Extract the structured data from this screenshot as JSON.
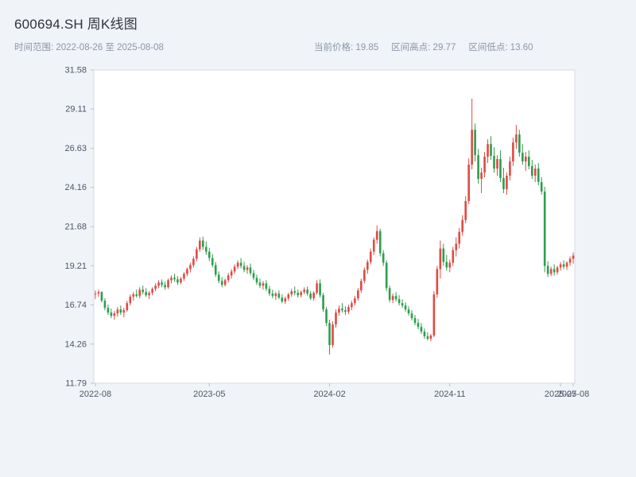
{
  "header": {
    "title": "600694.SH 周K线图",
    "time_range_label": "时间范围: 2022-08-26 至 2025-08-08",
    "current_price_label": "当前价格: 19.85",
    "range_high_label": "区间高点: 29.77",
    "range_low_label": "区间低点: 13.60"
  },
  "chart_data": {
    "type": "candlestick",
    "title": "600694.SH 周K线图",
    "symbol": "600694.SH",
    "interval": "weekly",
    "time_range": {
      "start": "2022-08-26",
      "end": "2025-08-08"
    },
    "current_price": 19.85,
    "range_high": 29.77,
    "range_low": 13.6,
    "up_color": "#df4b44",
    "down_color": "#2e9e4e",
    "grid": false,
    "legend": false,
    "ylim": [
      11.79,
      31.58
    ],
    "y_ticks": [
      11.79,
      14.26,
      16.74,
      19.21,
      21.68,
      24.16,
      26.63,
      29.11,
      31.58
    ],
    "x_ticks": [
      {
        "index": 0,
        "label": "2022-08"
      },
      {
        "index": 36,
        "label": "2023-05"
      },
      {
        "index": 74,
        "label": "2024-02"
      },
      {
        "index": 112,
        "label": "2024-11"
      },
      {
        "index": 147,
        "label": "2025-07"
      },
      {
        "index": 151,
        "label": "2025-08"
      }
    ],
    "columns": [
      "date",
      "open",
      "high",
      "low",
      "close"
    ],
    "candles": [
      [
        "2022-08-26",
        17.4,
        17.65,
        17.1,
        17.45
      ],
      [
        "2022-09-02",
        17.45,
        17.7,
        17.25,
        17.55
      ],
      [
        "2022-09-09",
        17.55,
        17.6,
        16.9,
        17.0
      ],
      [
        "2022-09-16",
        17.0,
        17.15,
        16.4,
        16.55
      ],
      [
        "2022-09-23",
        16.55,
        16.75,
        16.1,
        16.25
      ],
      [
        "2022-09-30",
        16.25,
        16.5,
        15.9,
        16.05
      ],
      [
        "2022-10-07",
        16.05,
        16.35,
        15.8,
        16.2
      ],
      [
        "2022-10-14",
        16.2,
        16.6,
        16.0,
        16.45
      ],
      [
        "2022-10-21",
        16.45,
        16.7,
        16.1,
        16.25
      ],
      [
        "2022-10-28",
        16.25,
        16.55,
        15.95,
        16.4
      ],
      [
        "2022-11-04",
        16.4,
        17.0,
        16.3,
        16.85
      ],
      [
        "2022-11-11",
        16.85,
        17.4,
        16.7,
        17.25
      ],
      [
        "2022-11-18",
        17.25,
        17.55,
        17.0,
        17.4
      ],
      [
        "2022-11-25",
        17.4,
        17.7,
        17.2,
        17.3
      ],
      [
        "2022-12-02",
        17.3,
        17.85,
        17.15,
        17.7
      ],
      [
        "2022-12-09",
        17.7,
        17.95,
        17.4,
        17.55
      ],
      [
        "2022-12-16",
        17.55,
        17.8,
        17.25,
        17.35
      ],
      [
        "2022-12-23",
        17.35,
        17.6,
        17.1,
        17.5
      ],
      [
        "2022-12-30",
        17.5,
        17.85,
        17.35,
        17.75
      ],
      [
        "2023-01-06",
        17.75,
        18.1,
        17.6,
        17.95
      ],
      [
        "2023-01-13",
        17.95,
        18.3,
        17.8,
        18.15
      ],
      [
        "2023-01-20",
        18.15,
        18.35,
        17.85,
        18.0
      ],
      [
        "2023-01-27",
        18.0,
        18.2,
        17.7,
        17.85
      ],
      [
        "2023-02-03",
        17.85,
        18.4,
        17.75,
        18.3
      ],
      [
        "2023-02-10",
        18.3,
        18.6,
        18.1,
        18.45
      ],
      [
        "2023-02-17",
        18.45,
        18.7,
        18.2,
        18.35
      ],
      [
        "2023-02-24",
        18.35,
        18.55,
        18.0,
        18.15
      ],
      [
        "2023-03-03",
        18.15,
        18.5,
        18.05,
        18.4
      ],
      [
        "2023-03-10",
        18.4,
        18.8,
        18.25,
        18.7
      ],
      [
        "2023-03-17",
        18.7,
        19.1,
        18.55,
        19.0
      ],
      [
        "2023-03-24",
        19.0,
        19.4,
        18.8,
        19.25
      ],
      [
        "2023-03-31",
        19.25,
        19.8,
        19.1,
        19.65
      ],
      [
        "2023-04-07",
        19.65,
        20.4,
        19.5,
        20.25
      ],
      [
        "2023-04-14",
        20.25,
        21.0,
        20.1,
        20.8
      ],
      [
        "2023-04-21",
        20.8,
        21.05,
        20.2,
        20.4
      ],
      [
        "2023-04-28",
        20.4,
        20.75,
        19.9,
        20.1
      ],
      [
        "2023-05-05",
        20.1,
        20.35,
        19.5,
        19.7
      ],
      [
        "2023-05-12",
        19.7,
        19.95,
        19.1,
        19.25
      ],
      [
        "2023-05-19",
        19.25,
        19.45,
        18.5,
        18.65
      ],
      [
        "2023-05-26",
        18.65,
        18.85,
        18.1,
        18.25
      ],
      [
        "2023-06-02",
        18.25,
        18.5,
        17.85,
        18.0
      ],
      [
        "2023-06-09",
        18.0,
        18.4,
        17.9,
        18.3
      ],
      [
        "2023-06-16",
        18.3,
        18.75,
        18.15,
        18.6
      ],
      [
        "2023-06-23",
        18.6,
        19.0,
        18.4,
        18.85
      ],
      [
        "2023-06-30",
        18.85,
        19.3,
        18.7,
        19.15
      ],
      [
        "2023-07-07",
        19.15,
        19.55,
        19.0,
        19.4
      ],
      [
        "2023-07-14",
        19.4,
        19.7,
        19.05,
        19.2
      ],
      [
        "2023-07-21",
        19.2,
        19.45,
        18.8,
        18.95
      ],
      [
        "2023-07-28",
        18.95,
        19.25,
        18.7,
        19.1
      ],
      [
        "2023-08-04",
        19.1,
        19.35,
        18.6,
        18.75
      ],
      [
        "2023-08-11",
        18.75,
        18.95,
        18.3,
        18.45
      ],
      [
        "2023-08-18",
        18.45,
        18.65,
        18.0,
        18.15
      ],
      [
        "2023-08-25",
        18.15,
        18.4,
        17.8,
        17.95
      ],
      [
        "2023-09-01",
        17.95,
        18.25,
        17.7,
        18.1
      ],
      [
        "2023-09-08",
        18.1,
        18.3,
        17.6,
        17.75
      ],
      [
        "2023-09-15",
        17.75,
        17.95,
        17.3,
        17.45
      ],
      [
        "2023-09-22",
        17.45,
        17.7,
        17.15,
        17.3
      ],
      [
        "2023-09-28",
        17.3,
        17.55,
        17.05,
        17.45
      ],
      [
        "2023-10-13",
        17.45,
        17.65,
        17.1,
        17.2
      ],
      [
        "2023-10-20",
        17.2,
        17.4,
        16.85,
        16.95
      ],
      [
        "2023-10-27",
        16.95,
        17.25,
        16.8,
        17.15
      ],
      [
        "2023-11-03",
        17.15,
        17.5,
        17.0,
        17.4
      ],
      [
        "2023-11-10",
        17.4,
        17.75,
        17.25,
        17.6
      ],
      [
        "2023-11-17",
        17.6,
        17.9,
        17.35,
        17.5
      ],
      [
        "2023-11-24",
        17.5,
        17.7,
        17.2,
        17.35
      ],
      [
        "2023-12-01",
        17.35,
        17.65,
        17.2,
        17.55
      ],
      [
        "2023-12-08",
        17.55,
        17.85,
        17.4,
        17.7
      ],
      [
        "2023-12-15",
        17.7,
        17.9,
        17.3,
        17.45
      ],
      [
        "2023-12-22",
        17.45,
        17.6,
        17.05,
        17.15
      ],
      [
        "2023-12-29",
        17.15,
        17.6,
        17.0,
        17.5
      ],
      [
        "2024-01-05",
        17.5,
        18.3,
        17.4,
        18.1
      ],
      [
        "2024-01-12",
        18.1,
        18.35,
        17.2,
        17.35
      ],
      [
        "2024-01-19",
        17.35,
        17.5,
        16.3,
        16.45
      ],
      [
        "2024-01-26",
        16.45,
        16.6,
        15.4,
        15.6
      ],
      [
        "2024-02-02",
        15.6,
        15.8,
        13.6,
        14.2
      ],
      [
        "2024-02-08",
        14.2,
        15.7,
        14.05,
        15.5
      ],
      [
        "2024-02-23",
        15.5,
        16.45,
        15.3,
        16.25
      ],
      [
        "2024-03-01",
        16.25,
        16.7,
        16.05,
        16.5
      ],
      [
        "2024-03-08",
        16.5,
        16.85,
        16.25,
        16.4
      ],
      [
        "2024-03-15",
        16.4,
        16.65,
        16.1,
        16.3
      ],
      [
        "2024-03-22",
        16.3,
        16.75,
        16.15,
        16.6
      ],
      [
        "2024-03-29",
        16.6,
        17.0,
        16.4,
        16.85
      ],
      [
        "2024-04-03",
        16.85,
        17.3,
        16.7,
        17.15
      ],
      [
        "2024-04-12",
        17.15,
        17.8,
        17.0,
        17.65
      ],
      [
        "2024-04-19",
        17.65,
        18.4,
        17.5,
        18.25
      ],
      [
        "2024-04-26",
        18.25,
        19.1,
        18.1,
        18.95
      ],
      [
        "2024-04-30",
        18.95,
        19.6,
        18.7,
        19.45
      ],
      [
        "2024-05-10",
        19.45,
        20.3,
        19.3,
        20.1
      ],
      [
        "2024-05-17",
        20.1,
        21.0,
        19.9,
        20.85
      ],
      [
        "2024-05-24",
        20.85,
        21.75,
        20.6,
        21.4
      ],
      [
        "2024-05-31",
        21.4,
        21.55,
        19.8,
        20.0
      ],
      [
        "2024-06-07",
        20.0,
        20.2,
        19.2,
        19.4
      ],
      [
        "2024-06-14",
        19.4,
        19.55,
        17.6,
        17.8
      ],
      [
        "2024-06-21",
        17.8,
        17.95,
        16.9,
        17.05
      ],
      [
        "2024-06-28",
        17.05,
        17.45,
        16.85,
        17.3
      ],
      [
        "2024-07-05",
        17.3,
        17.55,
        16.95,
        17.1
      ],
      [
        "2024-07-12",
        17.1,
        17.35,
        16.7,
        16.85
      ],
      [
        "2024-07-19",
        16.85,
        17.1,
        16.55,
        16.7
      ],
      [
        "2024-07-26",
        16.7,
        16.9,
        16.3,
        16.45
      ],
      [
        "2024-08-02",
        16.45,
        16.65,
        16.05,
        16.2
      ],
      [
        "2024-08-09",
        16.2,
        16.4,
        15.75,
        15.9
      ],
      [
        "2024-08-16",
        15.9,
        16.1,
        15.45,
        15.6
      ],
      [
        "2024-08-23",
        15.6,
        15.85,
        15.2,
        15.35
      ],
      [
        "2024-08-30",
        15.35,
        15.6,
        14.9,
        15.05
      ],
      [
        "2024-09-06",
        15.05,
        15.25,
        14.6,
        14.75
      ],
      [
        "2024-09-13",
        14.75,
        15.0,
        14.5,
        14.6
      ],
      [
        "2024-09-20",
        14.6,
        14.9,
        14.45,
        14.8
      ],
      [
        "2024-09-27",
        14.8,
        17.6,
        14.7,
        17.4
      ],
      [
        "2024-10-04",
        17.4,
        19.2,
        17.2,
        19.0
      ],
      [
        "2024-10-11",
        19.0,
        20.8,
        18.4,
        20.3
      ],
      [
        "2024-10-18",
        20.3,
        20.6,
        19.2,
        19.45
      ],
      [
        "2024-10-25",
        19.45,
        19.9,
        18.9,
        19.1
      ],
      [
        "2024-11-01",
        19.1,
        19.6,
        18.8,
        19.4
      ],
      [
        "2024-11-08",
        19.4,
        20.4,
        19.2,
        20.2
      ],
      [
        "2024-11-15",
        20.2,
        21.0,
        19.8,
        20.6
      ],
      [
        "2024-11-22",
        20.6,
        21.6,
        20.3,
        21.35
      ],
      [
        "2024-11-29",
        21.35,
        22.4,
        21.1,
        22.1
      ],
      [
        "2024-12-06",
        22.1,
        23.6,
        21.9,
        23.3
      ],
      [
        "2024-12-13",
        23.3,
        26.0,
        23.1,
        25.6
      ],
      [
        "2024-12-20",
        25.6,
        29.77,
        25.3,
        27.8
      ],
      [
        "2024-12-27",
        27.8,
        28.2,
        25.8,
        26.2
      ],
      [
        "2025-01-03",
        26.2,
        26.6,
        24.4,
        24.7
      ],
      [
        "2025-01-10",
        24.7,
        25.4,
        23.8,
        25.1
      ],
      [
        "2025-01-17",
        25.1,
        26.4,
        24.8,
        26.1
      ],
      [
        "2025-01-24",
        26.1,
        27.2,
        25.7,
        26.9
      ],
      [
        "2025-02-07",
        26.9,
        27.4,
        25.9,
        26.15
      ],
      [
        "2025-02-14",
        26.15,
        26.7,
        25.1,
        25.35
      ],
      [
        "2025-02-21",
        25.35,
        26.2,
        24.9,
        25.95
      ],
      [
        "2025-02-28",
        25.95,
        26.5,
        24.5,
        24.75
      ],
      [
        "2025-03-07",
        24.75,
        25.4,
        23.8,
        24.05
      ],
      [
        "2025-03-14",
        24.05,
        25.1,
        23.7,
        24.9
      ],
      [
        "2025-03-21",
        24.9,
        26.1,
        24.6,
        25.8
      ],
      [
        "2025-03-28",
        25.8,
        27.3,
        25.5,
        27.0
      ],
      [
        "2025-04-03",
        27.0,
        28.1,
        26.6,
        27.5
      ],
      [
        "2025-04-11",
        27.5,
        27.8,
        26.1,
        26.35
      ],
      [
        "2025-04-18",
        26.35,
        26.9,
        25.6,
        25.8
      ],
      [
        "2025-04-25",
        25.8,
        26.4,
        25.2,
        26.1
      ],
      [
        "2025-04-30",
        26.1,
        26.5,
        25.3,
        25.5
      ],
      [
        "2025-05-09",
        25.5,
        25.9,
        24.7,
        24.9
      ],
      [
        "2025-05-16",
        24.9,
        25.6,
        24.5,
        25.35
      ],
      [
        "2025-05-23",
        25.35,
        25.7,
        24.3,
        24.5
      ],
      [
        "2025-05-30",
        24.5,
        24.8,
        23.7,
        23.9
      ],
      [
        "2025-06-06",
        23.9,
        24.2,
        18.8,
        19.2
      ],
      [
        "2025-06-13",
        19.2,
        19.5,
        18.5,
        18.7
      ],
      [
        "2025-06-20",
        18.7,
        19.15,
        18.55,
        19.0
      ],
      [
        "2025-06-27",
        19.0,
        19.3,
        18.6,
        18.8
      ],
      [
        "2025-07-04",
        18.8,
        19.2,
        18.65,
        19.1
      ],
      [
        "2025-07-11",
        19.1,
        19.45,
        18.9,
        19.3
      ],
      [
        "2025-07-18",
        19.3,
        19.55,
        19.0,
        19.15
      ],
      [
        "2025-07-25",
        19.15,
        19.5,
        18.95,
        19.4
      ],
      [
        "2025-08-01",
        19.4,
        19.8,
        19.2,
        19.65
      ],
      [
        "2025-08-08",
        19.65,
        20.05,
        19.35,
        19.85
      ]
    ]
  }
}
